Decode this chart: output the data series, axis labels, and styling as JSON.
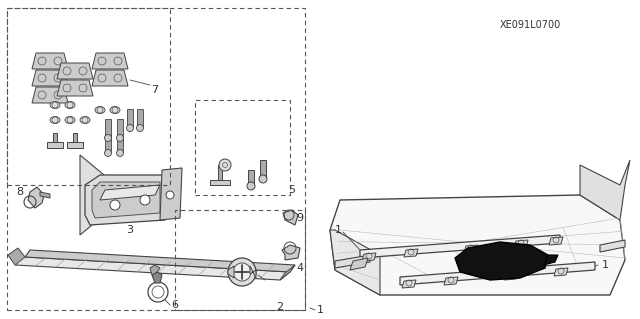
{
  "bg_color": "#ffffff",
  "ref_code": "XE091L0700",
  "fig_width": 6.4,
  "fig_height": 3.19,
  "dpi": 100,
  "line_color": "#444444",
  "light_gray": "#bbbbbb",
  "mid_gray": "#888888",
  "dark_gray": "#555555"
}
